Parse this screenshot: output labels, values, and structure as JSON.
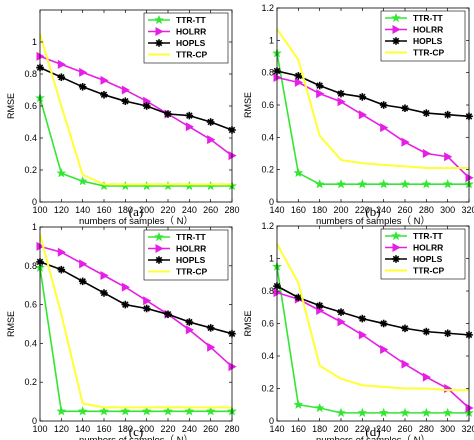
{
  "colors": {
    "TTR-TT": "#33e633",
    "HOLRR": "#e61ee6",
    "HOPLS": "#000000",
    "TTR-CP": "#ffff33"
  },
  "chart_data": [
    {
      "type": "line",
      "panel_label": "(a)",
      "xlabel": "numbers of samples（ N）",
      "ylabel": "RMSE",
      "xlim": [
        100,
        280
      ],
      "ylim": [
        0,
        1.2
      ],
      "x_ticks": [
        100,
        120,
        140,
        160,
        180,
        200,
        220,
        240,
        260,
        280
      ],
      "x_tick_labels": [
        "100",
        "120",
        "140",
        "160",
        "180",
        "200",
        "220",
        "240",
        "260",
        "280"
      ],
      "y_ticks": [
        0,
        0.2,
        0.4,
        0.6,
        0.8,
        1
      ],
      "y_tick_labels": [
        "0",
        "0.2",
        "0.4",
        "0.6",
        "0.8",
        "1"
      ],
      "legend_position": "top-right",
      "x": [
        100,
        120,
        140,
        160,
        180,
        200,
        220,
        240,
        260,
        280
      ],
      "series": [
        {
          "name": "TTR-TT",
          "marker": "star",
          "values": [
            0.65,
            0.18,
            0.13,
            0.1,
            0.1,
            0.1,
            0.1,
            0.1,
            0.1,
            0.1
          ]
        },
        {
          "name": "HOLRR",
          "marker": "triangle-right",
          "values": [
            0.91,
            0.86,
            0.81,
            0.76,
            0.7,
            0.63,
            0.55,
            0.47,
            0.39,
            0.29
          ]
        },
        {
          "name": "HOPLS",
          "marker": "asterisk",
          "values": [
            0.84,
            0.78,
            0.72,
            0.67,
            0.63,
            0.6,
            0.55,
            0.54,
            0.5,
            0.45
          ]
        },
        {
          "name": "TTR-CP",
          "marker": "none",
          "values": [
            1.05,
            0.6,
            0.17,
            0.11,
            0.11,
            0.11,
            0.11,
            0.11,
            0.11,
            0.11
          ]
        }
      ]
    },
    {
      "type": "line",
      "panel_label": "(b)",
      "xlabel": "numbers of samples（ N）",
      "ylabel": "RMSE",
      "xlim": [
        140,
        320
      ],
      "ylim": [
        0,
        1.2
      ],
      "x_ticks": [
        140,
        160,
        180,
        200,
        220,
        240,
        260,
        280,
        300,
        320
      ],
      "x_tick_labels": [
        "140",
        "160",
        "180",
        "200",
        "220",
        "240",
        "260",
        "280",
        "300",
        "320"
      ],
      "y_ticks": [
        0,
        0.2,
        0.4,
        0.6,
        0.8,
        1,
        1.2
      ],
      "y_tick_labels": [
        "0",
        "0.2",
        "0.4",
        "0.6",
        "0.8",
        "1",
        "1.2"
      ],
      "legend_position": "top-right",
      "x": [
        140,
        160,
        180,
        200,
        220,
        240,
        260,
        280,
        300,
        320
      ],
      "series": [
        {
          "name": "TTR-TT",
          "marker": "star",
          "values": [
            0.92,
            0.18,
            0.11,
            0.11,
            0.11,
            0.11,
            0.11,
            0.11,
            0.11,
            0.11
          ]
        },
        {
          "name": "HOLRR",
          "marker": "triangle-right",
          "values": [
            0.77,
            0.74,
            0.67,
            0.62,
            0.54,
            0.46,
            0.37,
            0.3,
            0.28,
            0.15
          ]
        },
        {
          "name": "HOPLS",
          "marker": "asterisk",
          "values": [
            0.81,
            0.78,
            0.72,
            0.67,
            0.65,
            0.6,
            0.58,
            0.55,
            0.54,
            0.53
          ]
        },
        {
          "name": "TTR-CP",
          "marker": "none",
          "values": [
            1.07,
            0.88,
            0.41,
            0.26,
            0.24,
            0.23,
            0.22,
            0.21,
            0.21,
            0.21
          ]
        }
      ]
    },
    {
      "type": "line",
      "panel_label": "(c)",
      "xlabel": "numbers of samples（ N）",
      "ylabel": "RMSE",
      "xlim": [
        100,
        280
      ],
      "ylim": [
        0,
        1.0
      ],
      "x_ticks": [
        100,
        120,
        140,
        160,
        180,
        200,
        220,
        240,
        260,
        280
      ],
      "x_tick_labels": [
        "100",
        "120",
        "140",
        "160",
        "180",
        "200",
        "220",
        "240",
        "260",
        "280"
      ],
      "y_ticks": [
        0,
        0.2,
        0.4,
        0.6,
        0.8,
        1
      ],
      "y_tick_labels": [
        "0",
        "0.2",
        "0.4",
        "0.6",
        "0.8",
        "1"
      ],
      "legend_position": "top-right",
      "x": [
        100,
        120,
        140,
        160,
        180,
        200,
        220,
        240,
        260,
        280
      ],
      "series": [
        {
          "name": "TTR-TT",
          "marker": "star",
          "values": [
            0.79,
            0.05,
            0.05,
            0.05,
            0.05,
            0.05,
            0.05,
            0.05,
            0.05,
            0.05
          ]
        },
        {
          "name": "HOLRR",
          "marker": "triangle-right",
          "values": [
            0.9,
            0.87,
            0.81,
            0.75,
            0.69,
            0.62,
            0.55,
            0.47,
            0.38,
            0.28
          ]
        },
        {
          "name": "HOPLS",
          "marker": "asterisk",
          "values": [
            0.82,
            0.78,
            0.72,
            0.66,
            0.6,
            0.58,
            0.55,
            0.51,
            0.48,
            0.45
          ]
        },
        {
          "name": "TTR-CP",
          "marker": "none",
          "values": [
            0.96,
            0.55,
            0.09,
            0.07,
            0.07,
            0.07,
            0.07,
            0.07,
            0.07,
            0.07
          ]
        }
      ]
    },
    {
      "type": "line",
      "panel_label": "(d)",
      "xlabel": "numbers of samples（ N）",
      "ylabel": "RMSE",
      "xlim": [
        140,
        320
      ],
      "ylim": [
        0,
        1.2
      ],
      "x_ticks": [
        140,
        160,
        180,
        200,
        220,
        240,
        260,
        280,
        300,
        320
      ],
      "x_tick_labels": [
        "140",
        "160",
        "180",
        "200",
        "220",
        "240",
        "260",
        "280",
        "300",
        "320"
      ],
      "y_ticks": [
        0,
        0.2,
        0.4,
        0.6,
        0.8,
        1,
        1.2
      ],
      "y_tick_labels": [
        "0",
        "0.2",
        "0.4",
        "0.6",
        "0.8",
        "1",
        "1.2"
      ],
      "legend_position": "top-right",
      "x": [
        140,
        160,
        180,
        200,
        220,
        240,
        260,
        280,
        300,
        320
      ],
      "series": [
        {
          "name": "TTR-TT",
          "marker": "star",
          "values": [
            0.95,
            0.1,
            0.08,
            0.05,
            0.05,
            0.05,
            0.05,
            0.05,
            0.05,
            0.05
          ]
        },
        {
          "name": "HOLRR",
          "marker": "triangle-right",
          "values": [
            0.79,
            0.75,
            0.68,
            0.61,
            0.53,
            0.44,
            0.35,
            0.27,
            0.2,
            0.08
          ]
        },
        {
          "name": "HOPLS",
          "marker": "asterisk",
          "values": [
            0.83,
            0.76,
            0.71,
            0.67,
            0.63,
            0.6,
            0.57,
            0.55,
            0.54,
            0.53
          ]
        },
        {
          "name": "TTR-CP",
          "marker": "none",
          "values": [
            1.09,
            0.85,
            0.34,
            0.26,
            0.22,
            0.21,
            0.2,
            0.2,
            0.19,
            0.19
          ]
        }
      ]
    }
  ]
}
